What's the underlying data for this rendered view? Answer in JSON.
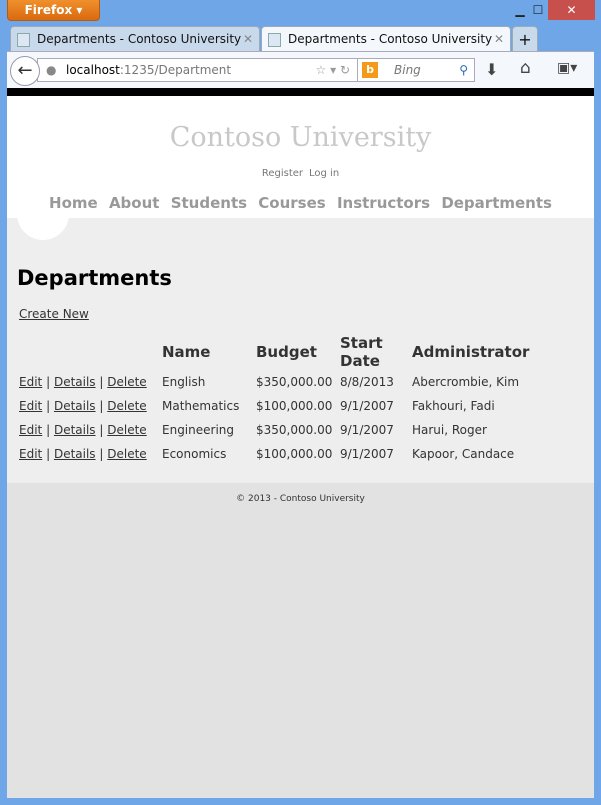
{
  "browser": {
    "menu_label": "Firefox",
    "tabs": [
      {
        "title": "Departments - Contoso University"
      },
      {
        "title": "Departments - Contoso University"
      }
    ],
    "new_tab": "+",
    "url_host": "localhost",
    "url_path": ":1235/Department",
    "search_placeholder": "Bing"
  },
  "site": {
    "title": "Contoso University",
    "register": "Register",
    "login": "Log in",
    "nav": [
      "Home",
      "About",
      "Students",
      "Courses",
      "Instructors",
      "Departments"
    ]
  },
  "main": {
    "heading": "Departments",
    "create_new": "Create New",
    "columns": [
      "Name",
      "Budget",
      "Start Date",
      "Administrator"
    ],
    "actions": {
      "edit": "Edit",
      "details": "Details",
      "delete": "Delete",
      "sep": "|"
    },
    "rows": [
      {
        "name": "English",
        "budget": "$350,000.00",
        "start": "8/8/2013",
        "admin": "Abercrombie, Kim"
      },
      {
        "name": "Mathematics",
        "budget": "$100,000.00",
        "start": "9/1/2007",
        "admin": "Fakhouri, Fadi"
      },
      {
        "name": "Engineering",
        "budget": "$350,000.00",
        "start": "9/1/2007",
        "admin": "Harui, Roger"
      },
      {
        "name": "Economics",
        "budget": "$100,000.00",
        "start": "9/1/2007",
        "admin": "Kapoor, Candace"
      }
    ]
  },
  "footer": "© 2013 - Contoso University"
}
